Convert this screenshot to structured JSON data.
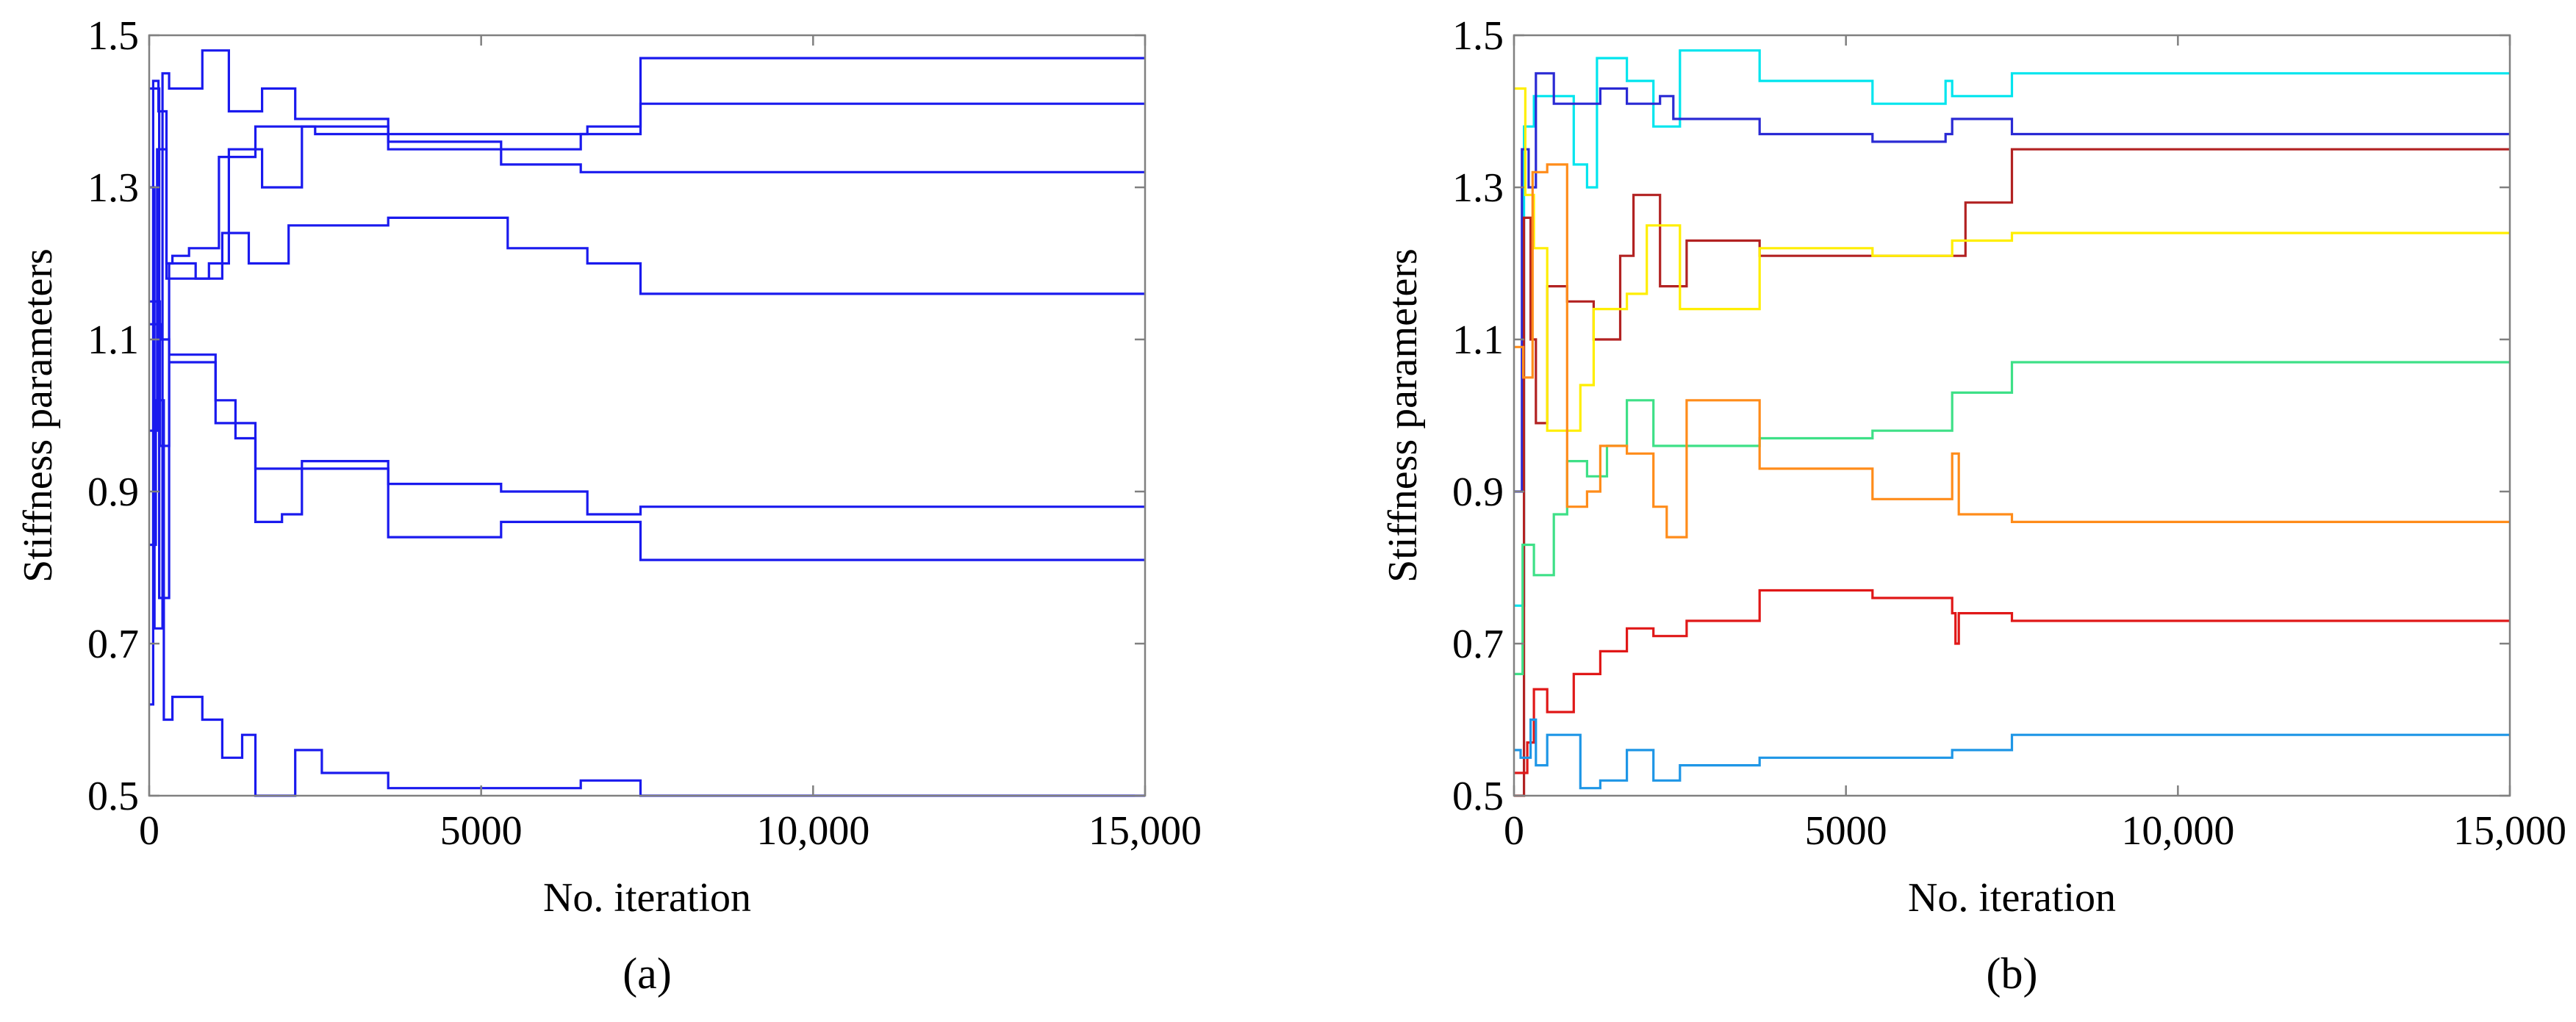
{
  "chart_data": [
    {
      "type": "line",
      "caption": "(a)",
      "xlabel": "No. iteration",
      "ylabel": "Stiffness parameters",
      "xlim": [
        0,
        15000
      ],
      "ylim": [
        0.5,
        1.5
      ],
      "xticks": [
        0,
        5000,
        10000,
        15000
      ],
      "xtick_labels": [
        "0",
        "5000",
        "10,000",
        "15,000"
      ],
      "yticks": [
        0.5,
        0.7,
        0.9,
        1.1,
        1.3,
        1.5
      ],
      "ytick_labels": [
        "0.5",
        "0.7",
        "0.9",
        "1.1",
        "1.3",
        "1.5"
      ],
      "grid": false,
      "series": [
        {
          "color": "#1a1aee",
          "points": [
            [
              0,
              0.62
            ],
            [
              60,
              1.44
            ],
            [
              140,
              1.4
            ],
            [
              260,
              1.2
            ],
            [
              350,
              1.21
            ],
            [
              600,
              1.22
            ],
            [
              1000,
              1.22
            ],
            [
              1050,
              1.34
            ],
            [
              1600,
              1.38
            ],
            [
              2500,
              1.37
            ],
            [
              3600,
              1.35
            ],
            [
              5300,
              1.35
            ],
            [
              6500,
              1.37
            ],
            [
              7400,
              1.47
            ],
            [
              15000,
              1.47
            ]
          ]
        },
        {
          "color": "#1a1aee",
          "points": [
            [
              0,
              1.3
            ],
            [
              80,
              0.72
            ],
            [
              200,
              1.45
            ],
            [
              300,
              1.43
            ],
            [
              800,
              1.48
            ],
            [
              1100,
              1.48
            ],
            [
              1200,
              1.4
            ],
            [
              1700,
              1.43
            ],
            [
              2100,
              1.43
            ],
            [
              2200,
              1.39
            ],
            [
              3600,
              1.37
            ],
            [
              5300,
              1.37
            ],
            [
              6600,
              1.38
            ],
            [
              7400,
              1.41
            ],
            [
              15000,
              1.41
            ]
          ]
        },
        {
          "color": "#1a1aee",
          "points": [
            [
              0,
              0.98
            ],
            [
              120,
              1.35
            ],
            [
              260,
              1.18
            ],
            [
              700,
              1.18
            ],
            [
              900,
              1.2
            ],
            [
              1200,
              1.35
            ],
            [
              1700,
              1.3
            ],
            [
              2300,
              1.38
            ],
            [
              3600,
              1.36
            ],
            [
              5300,
              1.33
            ],
            [
              6500,
              1.32
            ],
            [
              7400,
              1.32
            ],
            [
              15000,
              1.32
            ]
          ]
        },
        {
          "color": "#1a1aee",
          "points": [
            [
              0,
              1.15
            ],
            [
              160,
              0.96
            ],
            [
              300,
              1.2
            ],
            [
              700,
              1.18
            ],
            [
              1100,
              1.24
            ],
            [
              1500,
              1.2
            ],
            [
              2100,
              1.25
            ],
            [
              3600,
              1.26
            ],
            [
              5400,
              1.22
            ],
            [
              6600,
              1.2
            ],
            [
              7400,
              1.16
            ],
            [
              15000,
              1.16
            ]
          ]
        },
        {
          "color": "#1a1aee",
          "points": [
            [
              0,
              1.43
            ],
            [
              150,
              0.76
            ],
            [
              300,
              1.07
            ],
            [
              700,
              1.07
            ],
            [
              1000,
              1.02
            ],
            [
              1300,
              0.97
            ],
            [
              1600,
              0.93
            ],
            [
              2100,
              0.93
            ],
            [
              2300,
              0.94
            ],
            [
              3600,
              0.91
            ],
            [
              5300,
              0.9
            ],
            [
              6600,
              0.87
            ],
            [
              7400,
              0.88
            ],
            [
              15000,
              0.88
            ]
          ]
        },
        {
          "color": "#1a1aee",
          "points": [
            [
              0,
              1.12
            ],
            [
              180,
              1.1
            ],
            [
              300,
              1.08
            ],
            [
              800,
              1.08
            ],
            [
              1000,
              0.99
            ],
            [
              1600,
              0.86
            ],
            [
              2000,
              0.87
            ],
            [
              2300,
              0.93
            ],
            [
              3600,
              0.84
            ],
            [
              5300,
              0.86
            ],
            [
              6600,
              0.86
            ],
            [
              7400,
              0.81
            ],
            [
              15000,
              0.81
            ]
          ]
        },
        {
          "color": "#1a1aee",
          "points": [
            [
              0,
              0.83
            ],
            [
              100,
              1.02
            ],
            [
              220,
              0.6
            ],
            [
              350,
              0.63
            ],
            [
              800,
              0.6
            ],
            [
              1100,
              0.55
            ],
            [
              1400,
              0.58
            ],
            [
              1600,
              0.5
            ],
            [
              2200,
              0.56
            ],
            [
              2600,
              0.53
            ],
            [
              3600,
              0.51
            ],
            [
              5300,
              0.51
            ],
            [
              6500,
              0.52
            ],
            [
              7400,
              0.5
            ],
            [
              15000,
              0.5
            ]
          ]
        }
      ]
    },
    {
      "type": "line",
      "caption": "(b)",
      "xlabel": "No. iteration",
      "ylabel": "Stiffness parameters",
      "xlim": [
        0,
        15000
      ],
      "ylim": [
        0.5,
        1.5
      ],
      "xticks": [
        0,
        5000,
        10000,
        15000
      ],
      "xtick_labels": [
        "0",
        "5000",
        "10,000",
        "15,000"
      ],
      "yticks": [
        0.5,
        0.7,
        0.9,
        1.1,
        1.3,
        1.5
      ],
      "ytick_labels": [
        "0.5",
        "0.7",
        "0.9",
        "1.1",
        "1.3",
        "1.5"
      ],
      "grid": false,
      "series": [
        {
          "color": "#00e5ee",
          "points": [
            [
              0,
              0.75
            ],
            [
              150,
              1.38
            ],
            [
              300,
              1.42
            ],
            [
              700,
              1.42
            ],
            [
              900,
              1.33
            ],
            [
              1100,
              1.3
            ],
            [
              1250,
              1.47
            ],
            [
              1700,
              1.44
            ],
            [
              2100,
              1.38
            ],
            [
              2500,
              1.48
            ],
            [
              3700,
              1.44
            ],
            [
              5400,
              1.41
            ],
            [
              6500,
              1.44
            ],
            [
              6600,
              1.42
            ],
            [
              7500,
              1.45
            ],
            [
              15000,
              1.45
            ]
          ]
        },
        {
          "color": "#2a2ad4",
          "points": [
            [
              0,
              0.9
            ],
            [
              120,
              1.35
            ],
            [
              220,
              1.3
            ],
            [
              330,
              1.45
            ],
            [
              600,
              1.41
            ],
            [
              1300,
              1.43
            ],
            [
              1700,
              1.41
            ],
            [
              2200,
              1.42
            ],
            [
              2400,
              1.39
            ],
            [
              3700,
              1.37
            ],
            [
              5400,
              1.36
            ],
            [
              6500,
              1.37
            ],
            [
              6600,
              1.39
            ],
            [
              7500,
              1.37
            ],
            [
              15000,
              1.37
            ]
          ]
        },
        {
          "color": "#b22222",
          "points": [
            [
              0,
              0.5
            ],
            [
              150,
              1.26
            ],
            [
              250,
              1.1
            ],
            [
              330,
              0.99
            ],
            [
              500,
              1.17
            ],
            [
              800,
              1.15
            ],
            [
              1200,
              1.1
            ],
            [
              1600,
              1.21
            ],
            [
              1800,
              1.29
            ],
            [
              2200,
              1.17
            ],
            [
              2600,
              1.23
            ],
            [
              3700,
              1.21
            ],
            [
              6600,
              1.21
            ],
            [
              6800,
              1.28
            ],
            [
              7500,
              1.35
            ],
            [
              15000,
              1.35
            ]
          ]
        },
        {
          "color": "#ffee00",
          "points": [
            [
              0,
              1.43
            ],
            [
              170,
              1.29
            ],
            [
              300,
              1.22
            ],
            [
              500,
              0.98
            ],
            [
              800,
              0.98
            ],
            [
              1000,
              1.04
            ],
            [
              1200,
              1.14
            ],
            [
              1700,
              1.16
            ],
            [
              2000,
              1.25
            ],
            [
              2500,
              1.14
            ],
            [
              3700,
              1.22
            ],
            [
              5400,
              1.21
            ],
            [
              6600,
              1.23
            ],
            [
              7500,
              1.24
            ],
            [
              15000,
              1.24
            ]
          ]
        },
        {
          "color": "#3ee087",
          "points": [
            [
              0,
              0.66
            ],
            [
              130,
              0.83
            ],
            [
              300,
              0.79
            ],
            [
              600,
              0.87
            ],
            [
              800,
              0.94
            ],
            [
              1100,
              0.92
            ],
            [
              1400,
              0.96
            ],
            [
              1700,
              1.02
            ],
            [
              2100,
              0.96
            ],
            [
              3700,
              0.97
            ],
            [
              5400,
              0.98
            ],
            [
              6600,
              1.03
            ],
            [
              7500,
              1.07
            ],
            [
              15000,
              1.07
            ]
          ]
        },
        {
          "color": "#ff8c1a",
          "points": [
            [
              0,
              1.09
            ],
            [
              140,
              1.05
            ],
            [
              280,
              1.32
            ],
            [
              500,
              1.33
            ],
            [
              800,
              0.88
            ],
            [
              1100,
              0.9
            ],
            [
              1300,
              0.96
            ],
            [
              1700,
              0.95
            ],
            [
              2100,
              0.88
            ],
            [
              2300,
              0.84
            ],
            [
              2600,
              1.02
            ],
            [
              3700,
              0.93
            ],
            [
              5400,
              0.89
            ],
            [
              6600,
              0.95
            ],
            [
              6700,
              0.87
            ],
            [
              7500,
              0.86
            ],
            [
              15000,
              0.86
            ]
          ]
        },
        {
          "color": "#e01818",
          "points": [
            [
              0,
              0.53
            ],
            [
              200,
              0.57
            ],
            [
              300,
              0.64
            ],
            [
              500,
              0.61
            ],
            [
              700,
              0.61
            ],
            [
              900,
              0.66
            ],
            [
              1300,
              0.69
            ],
            [
              1700,
              0.72
            ],
            [
              2100,
              0.71
            ],
            [
              2600,
              0.73
            ],
            [
              3700,
              0.77
            ],
            [
              5400,
              0.76
            ],
            [
              6600,
              0.74
            ],
            [
              6650,
              0.7
            ],
            [
              6700,
              0.74
            ],
            [
              7500,
              0.73
            ],
            [
              15000,
              0.73
            ]
          ]
        },
        {
          "color": "#1e96e6",
          "points": [
            [
              0,
              0.56
            ],
            [
              100,
              0.55
            ],
            [
              250,
              0.6
            ],
            [
              330,
              0.54
            ],
            [
              500,
              0.58
            ],
            [
              900,
              0.58
            ],
            [
              1000,
              0.51
            ],
            [
              1300,
              0.52
            ],
            [
              1700,
              0.56
            ],
            [
              2100,
              0.52
            ],
            [
              2500,
              0.54
            ],
            [
              3700,
              0.55
            ],
            [
              5400,
              0.55
            ],
            [
              6600,
              0.56
            ],
            [
              7500,
              0.58
            ],
            [
              15000,
              0.58
            ]
          ]
        }
      ]
    }
  ]
}
